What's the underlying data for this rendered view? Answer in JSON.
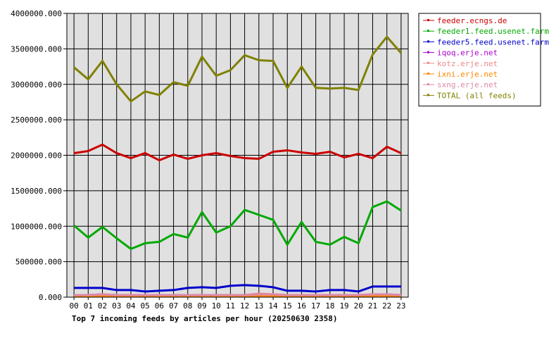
{
  "chart_data": {
    "type": "line",
    "title": "Top 7 incoming feeds by articles per hour (20250630 2358)",
    "categories": [
      "00",
      "01",
      "02",
      "03",
      "04",
      "05",
      "06",
      "07",
      "08",
      "09",
      "10",
      "11",
      "12",
      "13",
      "14",
      "15",
      "16",
      "17",
      "18",
      "19",
      "20",
      "21",
      "22",
      "23"
    ],
    "ylim": [
      0,
      4000000
    ],
    "yticks": [
      "0.000",
      "500000.000",
      "1000000.000",
      "1500000.000",
      "2000000.000",
      "2500000.000",
      "3000000.000",
      "3500000.000",
      "4000000.000"
    ],
    "grid": true,
    "legend_position": "right",
    "series": [
      {
        "name": "feeder.ecngs.de",
        "color": "#cc0000",
        "values": [
          2030000,
          2060000,
          2150000,
          2030000,
          1960000,
          2030000,
          1930000,
          2010000,
          1950000,
          2000000,
          2030000,
          1990000,
          1960000,
          1950000,
          2050000,
          2070000,
          2040000,
          2020000,
          2050000,
          1970000,
          2020000,
          1960000,
          2120000,
          2030000
        ]
      },
      {
        "name": "feeder1.feed.usenet.farm",
        "color": "#00aa00",
        "values": [
          1010000,
          840000,
          990000,
          830000,
          680000,
          760000,
          780000,
          890000,
          840000,
          1200000,
          910000,
          1000000,
          1230000,
          1160000,
          1090000,
          740000,
          1060000,
          780000,
          740000,
          850000,
          760000,
          1270000,
          1350000,
          1220000
        ]
      },
      {
        "name": "feeder5.feed.usenet.farm",
        "color": "#0000cc",
        "values": [
          130000,
          130000,
          130000,
          100000,
          100000,
          80000,
          90000,
          100000,
          130000,
          140000,
          130000,
          160000,
          170000,
          160000,
          140000,
          90000,
          90000,
          80000,
          100000,
          100000,
          80000,
          150000,
          150000,
          150000
        ]
      },
      {
        "name": "iqoq.erje.net",
        "color": "#aa00cc",
        "values": [
          30000,
          30000,
          30000,
          30000,
          30000,
          30000,
          30000,
          30000,
          30000,
          30000,
          30000,
          30000,
          30000,
          30000,
          30000,
          30000,
          30000,
          30000,
          30000,
          30000,
          30000,
          30000,
          30000,
          30000
        ]
      },
      {
        "name": "kotz.erje.net",
        "color": "#ee8888",
        "values": [
          30000,
          30000,
          40000,
          30000,
          30000,
          30000,
          30000,
          30000,
          30000,
          30000,
          30000,
          30000,
          30000,
          50000,
          40000,
          30000,
          30000,
          30000,
          30000,
          30000,
          30000,
          40000,
          40000,
          30000
        ]
      },
      {
        "name": "ixni.erje.net",
        "color": "#ff8800",
        "values": [
          20000,
          20000,
          20000,
          20000,
          20000,
          20000,
          20000,
          20000,
          20000,
          20000,
          20000,
          20000,
          20000,
          20000,
          20000,
          20000,
          20000,
          20000,
          20000,
          20000,
          20000,
          20000,
          20000,
          20000
        ]
      },
      {
        "name": "sxng.erje.net",
        "color": "#dd88aa",
        "values": [
          30000,
          30000,
          40000,
          30000,
          30000,
          30000,
          30000,
          30000,
          30000,
          30000,
          30000,
          30000,
          30000,
          40000,
          40000,
          30000,
          30000,
          30000,
          30000,
          30000,
          30000,
          40000,
          40000,
          30000
        ]
      },
      {
        "name": "TOTAL (all feeds)",
        "color": "#808000",
        "values": [
          3240000,
          3070000,
          3330000,
          3000000,
          2760000,
          2900000,
          2850000,
          3030000,
          2980000,
          3390000,
          3120000,
          3200000,
          3410000,
          3340000,
          3330000,
          2950000,
          3250000,
          2950000,
          2940000,
          2950000,
          2920000,
          3420000,
          3670000,
          3440000
        ]
      }
    ]
  }
}
